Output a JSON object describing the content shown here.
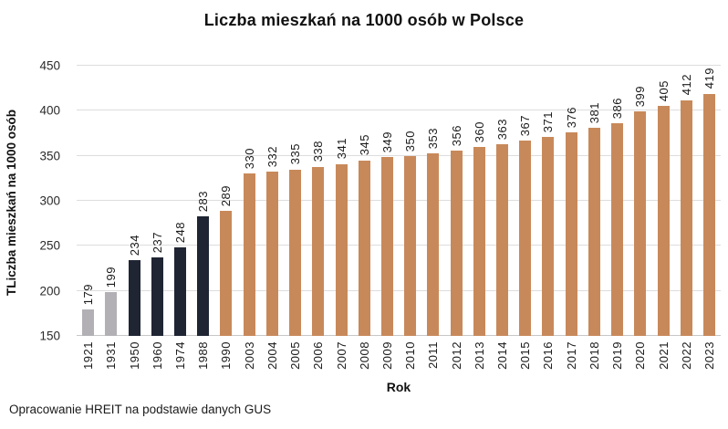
{
  "footer": "Opracowanie HREIT na podstawie danych GUS",
  "colors": {
    "prewar_gray": "#B2B0B5",
    "communist_navy": "#1F2533",
    "modern_orange": "#C8895A",
    "gridline": "#DDDDDD"
  },
  "chart_data": {
    "type": "bar",
    "title": "Liczba mieszkań na 1000 osób w Polsce",
    "xlabel": "Rok",
    "ylabel": "TLiczba mieszkań na 1000 osób",
    "ylim": [
      150,
      450
    ],
    "yticks": [
      150,
      200,
      250,
      300,
      350,
      400,
      450
    ],
    "grid": true,
    "legend": false,
    "categories": [
      "1921",
      "1931",
      "1950",
      "1960",
      "1974",
      "1988",
      "1990",
      "2003",
      "2004",
      "2005",
      "2006",
      "2007",
      "2008",
      "2009",
      "2010",
      "2011",
      "2012",
      "2013",
      "2014",
      "2015",
      "2016",
      "2017",
      "2018",
      "2019",
      "2020",
      "2021",
      "2022",
      "2023"
    ],
    "values": [
      179,
      199,
      234,
      237,
      248,
      283,
      289,
      330,
      332,
      335,
      338,
      341,
      345,
      349,
      350,
      353,
      356,
      360,
      363,
      367,
      371,
      376,
      381,
      386,
      399,
      405,
      412,
      419
    ],
    "bar_colors": [
      "#B2B0B5",
      "#B2B0B5",
      "#1F2533",
      "#1F2533",
      "#1F2533",
      "#1F2533",
      "#C8895A",
      "#C8895A",
      "#C8895A",
      "#C8895A",
      "#C8895A",
      "#C8895A",
      "#C8895A",
      "#C8895A",
      "#C8895A",
      "#C8895A",
      "#C8895A",
      "#C8895A",
      "#C8895A",
      "#C8895A",
      "#C8895A",
      "#C8895A",
      "#C8895A",
      "#C8895A",
      "#C8895A",
      "#C8895A",
      "#C8895A",
      "#C8895A"
    ]
  }
}
